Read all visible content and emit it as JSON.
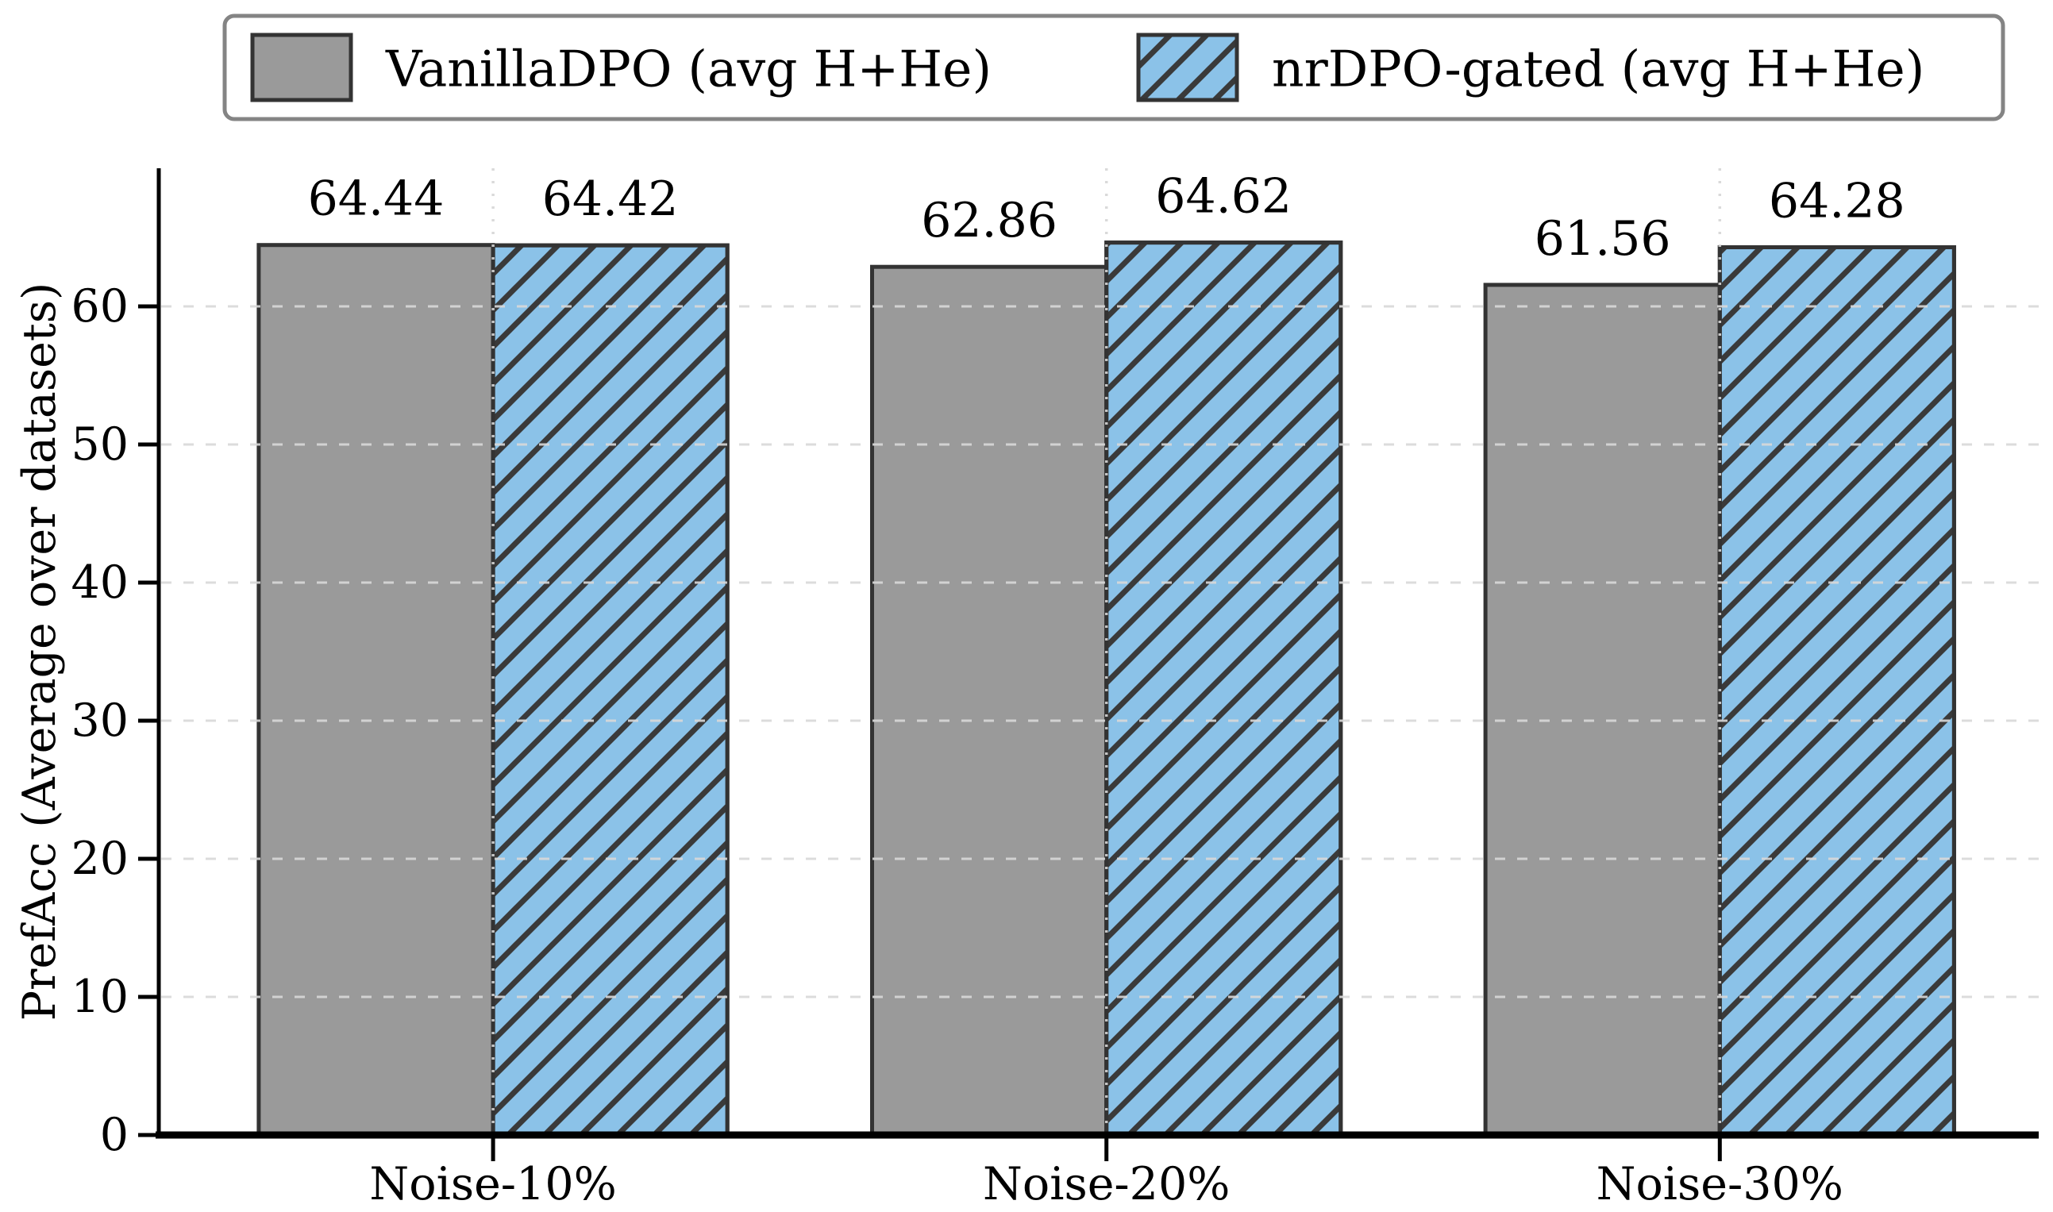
{
  "figure": {
    "kind": "grouped-bar-figure",
    "background": "#ffffff"
  },
  "chart_data": {
    "type": "bar",
    "title": "",
    "xlabel": "",
    "ylabel": "PrefAcc (Average over datasets)",
    "categories": [
      "Noise-10%",
      "Noise-20%",
      "Noise-30%"
    ],
    "series": [
      {
        "name": "VanillaDPO (avg H+He)",
        "values": [
          64.44,
          62.86,
          61.56
        ],
        "labels": [
          "64.44",
          "62.86",
          "61.56"
        ],
        "color": "#9a9a9a",
        "hatch": "none"
      },
      {
        "name": "nrDPO-gated (avg H+He)",
        "values": [
          64.42,
          64.62,
          64.28
        ],
        "labels": [
          "64.42",
          "64.62",
          "64.28"
        ],
        "color": "#8bc2e8",
        "hatch": "diagonal-forward"
      }
    ],
    "yticks": [
      0,
      10,
      20,
      30,
      40,
      50,
      60
    ],
    "ylim": [
      0,
      70
    ],
    "grid": "dashed-light-horizontal-and-group-center-vertical",
    "legend_position": "top",
    "legend_labels": [
      "VanillaDPO (avg H+He)",
      "nrDPO-gated (avg H+He)"
    ],
    "colors": {
      "bar_edge": "#333333",
      "hatch_line": "#3a3a3a",
      "grid_line": "#d9d9d9",
      "spine": "#000000",
      "legend_border": "#848484",
      "text": "#000000"
    }
  }
}
